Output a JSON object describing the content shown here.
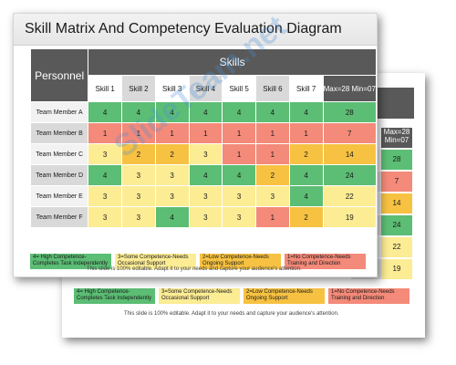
{
  "title": "Skill Matrix And Competency Evaluation Diagram",
  "table": {
    "personnel_header": "Personnel",
    "skills_header": "Skills",
    "maxmin": "Max=28 Min=07",
    "skills": [
      "Skill 1",
      "Skill 2",
      "Skill 3",
      "Skill 4",
      "Skill 5",
      "Skill 6",
      "Skill 7"
    ],
    "rows": [
      {
        "name": "Team Member A",
        "scores": [
          4,
          4,
          4,
          4,
          4,
          4,
          4
        ],
        "total": 28
      },
      {
        "name": "Team Member B",
        "scores": [
          1,
          1,
          1,
          1,
          1,
          1,
          1
        ],
        "total": 7
      },
      {
        "name": "Team Member C",
        "scores": [
          3,
          2,
          2,
          3,
          1,
          1,
          2
        ],
        "total": 14
      },
      {
        "name": "Team Member D",
        "scores": [
          4,
          3,
          3,
          4,
          4,
          2,
          4
        ],
        "total": 24
      },
      {
        "name": "Team Member E",
        "scores": [
          3,
          3,
          3,
          3,
          3,
          3,
          4
        ],
        "total": 22
      },
      {
        "name": "Team Member F",
        "scores": [
          3,
          3,
          4,
          3,
          3,
          1,
          2
        ],
        "total": 19
      }
    ]
  },
  "legend": [
    {
      "level": 4,
      "text": "4= High Competence-Completes Task Independently"
    },
    {
      "level": 3,
      "text": "3=Some Competence-Needs Occasional Support"
    },
    {
      "level": 2,
      "text": "2=Low Competence-Needs Ongoing Support"
    },
    {
      "level": 1,
      "text": "1=No Competence-Needs Training and Direction"
    }
  ],
  "note": "This slide is 100% editable. Adapt it to your needs and capture your audience's attention.",
  "back_slide": {
    "maxmin": "Max=28 Min=07",
    "totals": [
      28,
      7,
      14,
      24,
      22,
      19
    ]
  },
  "watermark": "SlideTeam.net",
  "colors": {
    "level_4": "#5cbd74",
    "level_3": "#fcec94",
    "level_2": "#f7c242",
    "level_1": "#f48a79",
    "header": "#595959"
  }
}
